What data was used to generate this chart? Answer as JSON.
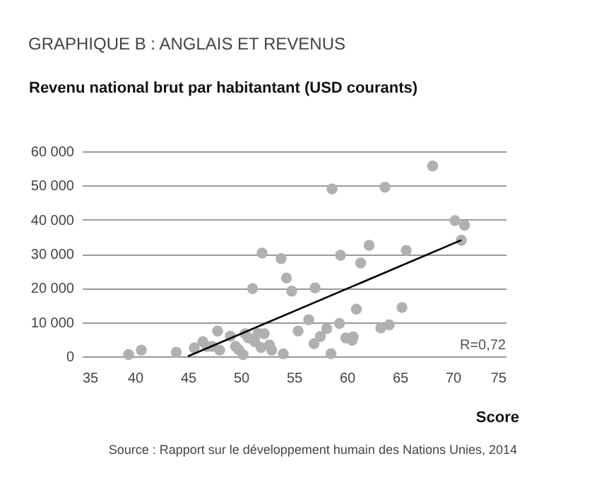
{
  "chart_data": {
    "type": "scatter",
    "title": "GRAPHIQUE B : ANGLAIS ET REVENUS",
    "ylabel": "Revenu national brut par habitantant (USD courants)",
    "xlabel": "Score",
    "annotations": [
      "R=0,72",
      "Source : Rapport sur le développement humain des Nations Unies, 2014"
    ],
    "xlim": [
      35,
      75
    ],
    "xticks": [
      35,
      40,
      45,
      50,
      55,
      60,
      65,
      70,
      75
    ],
    "ylim": [
      0,
      60000
    ],
    "yticks": [
      {
        "value": 0,
        "label": "0"
      },
      {
        "value": 10000,
        "label": "10 000"
      },
      {
        "value": 20000,
        "label": "20 000"
      },
      {
        "value": 30000,
        "label": "30 000"
      },
      {
        "value": 40000,
        "label": "40 000"
      },
      {
        "value": 50000,
        "label": "50 000"
      },
      {
        "value": 60000,
        "label": "60 000"
      }
    ],
    "grid": "y",
    "marker": "circle",
    "series": [
      {
        "color": "#b0b0b0",
        "x": [
          39.4,
          40.6,
          43.9,
          45.6,
          46.4,
          46.8,
          47.3,
          47.8,
          48.0,
          49.0,
          49.5,
          49.8,
          50.2,
          50.4,
          50.7,
          51.1,
          51.3,
          51.6,
          52.0,
          52.2,
          51.9,
          52.7,
          52.9,
          53.8,
          54.0,
          54.3,
          54.8,
          55.4,
          56.4,
          58.6,
          63.6,
          68.1,
          70.2,
          71.1,
          70.8,
          65.6,
          62.1,
          61.3,
          59.4,
          57.0,
          56.9,
          57.5,
          58.1,
          58.5,
          59.3,
          59.9,
          60.5,
          60.6,
          60.9,
          63.2,
          64.0,
          65.2
        ],
        "values": [
          500,
          1800,
          1200,
          2500,
          4300,
          2900,
          2900,
          7400,
          1800,
          5900,
          2900,
          1900,
          500,
          6600,
          5400,
          19800,
          4300,
          6700,
          30200,
          6600,
          2600,
          3300,
          1800,
          28600,
          700,
          22900,
          19100,
          7400,
          10700,
          49000,
          49500,
          55700,
          39700,
          38400,
          34000,
          31000,
          32500,
          27300,
          29600,
          20000,
          3700,
          5800,
          8100,
          800,
          9600,
          5400,
          4700,
          5700,
          13800,
          8300,
          9200,
          14300
        ]
      },
      {
        "type": "line",
        "marker": "none",
        "color": "#000000",
        "x": [
          45.0,
          70.8
        ],
        "values": [
          0,
          34000
        ]
      }
    ]
  }
}
